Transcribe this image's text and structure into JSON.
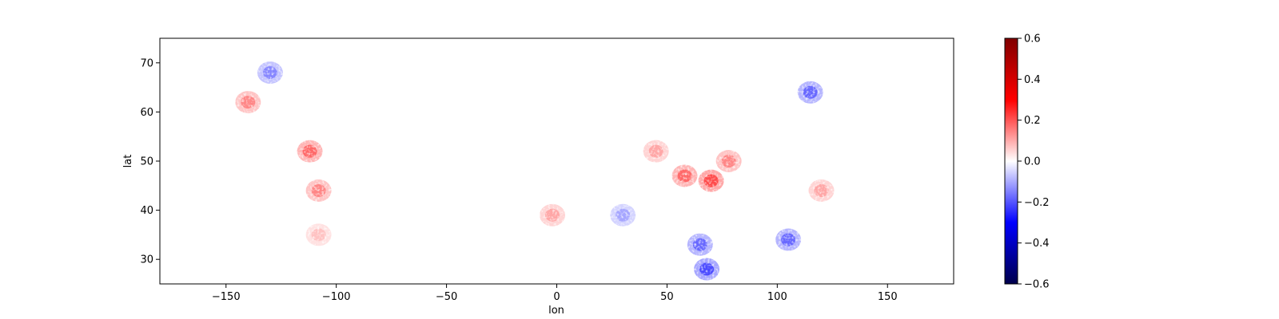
{
  "chart_data": {
    "type": "heatmap",
    "title": "",
    "xlabel": "lon",
    "ylabel": "lat",
    "xlim": [
      -180,
      180
    ],
    "ylim": [
      25,
      75
    ],
    "x_ticks": [
      -150,
      -100,
      -50,
      0,
      50,
      100,
      150
    ],
    "x_tick_labels": [
      "−150",
      "−100",
      "−50",
      "0",
      "50",
      "100",
      "150"
    ],
    "y_ticks": [
      30,
      40,
      50,
      60,
      70
    ],
    "y_tick_labels": [
      "30",
      "40",
      "50",
      "60",
      "70"
    ],
    "grid": false,
    "colormap": "seismic",
    "colormap_colors": [
      "#00004c",
      "#0000ff",
      "#ffffff",
      "#ff0000",
      "#800000"
    ],
    "colorbar": {
      "range": [
        -0.6,
        0.6
      ],
      "ticks": [
        -0.6,
        -0.4,
        -0.2,
        0.0,
        0.2,
        0.4,
        0.6
      ],
      "tick_labels": [
        "−0.6",
        "−0.4",
        "−0.2",
        "0.0",
        "0.2",
        "0.4",
        "0.6"
      ]
    },
    "notable_regions": [
      {
        "lon": -108,
        "lat": 44,
        "value": 0.2
      },
      {
        "lon": -112,
        "lat": 52,
        "value": 0.25
      },
      {
        "lon": -130,
        "lat": 68,
        "value": -0.2
      },
      {
        "lon": -140,
        "lat": 62,
        "value": 0.2
      },
      {
        "lon": -2,
        "lat": 39,
        "value": 0.15
      },
      {
        "lon": 45,
        "lat": 52,
        "value": 0.15
      },
      {
        "lon": 58,
        "lat": 47,
        "value": 0.25
      },
      {
        "lon": 70,
        "lat": 46,
        "value": 0.3
      },
      {
        "lon": 78,
        "lat": 50,
        "value": 0.2
      },
      {
        "lon": 115,
        "lat": 64,
        "value": -0.25
      },
      {
        "lon": 105,
        "lat": 34,
        "value": -0.25
      },
      {
        "lon": 65,
        "lat": 33,
        "value": -0.25
      },
      {
        "lon": 68,
        "lat": 28,
        "value": -0.3
      },
      {
        "lon": 30,
        "lat": 39,
        "value": -0.15
      },
      {
        "lon": 120,
        "lat": 44,
        "value": 0.15
      },
      {
        "lon": -108,
        "lat": 35,
        "value": 0.1
      }
    ]
  }
}
